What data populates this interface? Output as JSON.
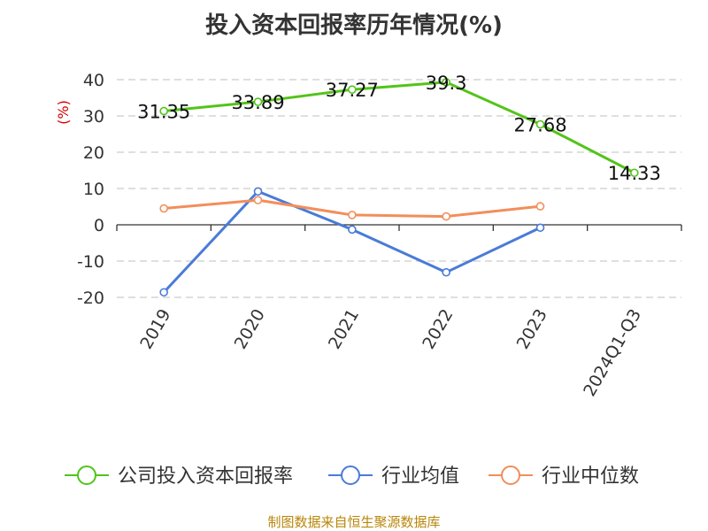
{
  "chart_data": {
    "type": "line",
    "title": "投入资本回报率历年情况(%)",
    "ylabel": "(%)",
    "xlabel": "",
    "categories": [
      "2019",
      "2020",
      "2021",
      "2022",
      "2023",
      "2024Q1-Q3"
    ],
    "ylim": [
      -20,
      40
    ],
    "yticks": [
      40,
      30,
      20,
      10,
      0,
      -10,
      -20
    ],
    "grid": true,
    "legend_position": "bottom",
    "series": [
      {
        "name": "公司投入资本回报率",
        "color": "#52c41a",
        "values": [
          31.35,
          33.89,
          37.27,
          39.3,
          27.68,
          14.33
        ],
        "labels": [
          "31.35",
          "33.89",
          "37.27",
          "39.3",
          "27.68",
          "14.33"
        ]
      },
      {
        "name": "行业均值",
        "color": "#4a7bd8",
        "values": [
          -18.6,
          9.2,
          -1.3,
          -13.1,
          -0.8,
          null
        ]
      },
      {
        "name": "行业中位数",
        "color": "#f28e5b",
        "values": [
          4.5,
          6.8,
          2.7,
          2.3,
          5.1,
          null
        ]
      }
    ]
  },
  "source": "制图数据来自恒生聚源数据库"
}
